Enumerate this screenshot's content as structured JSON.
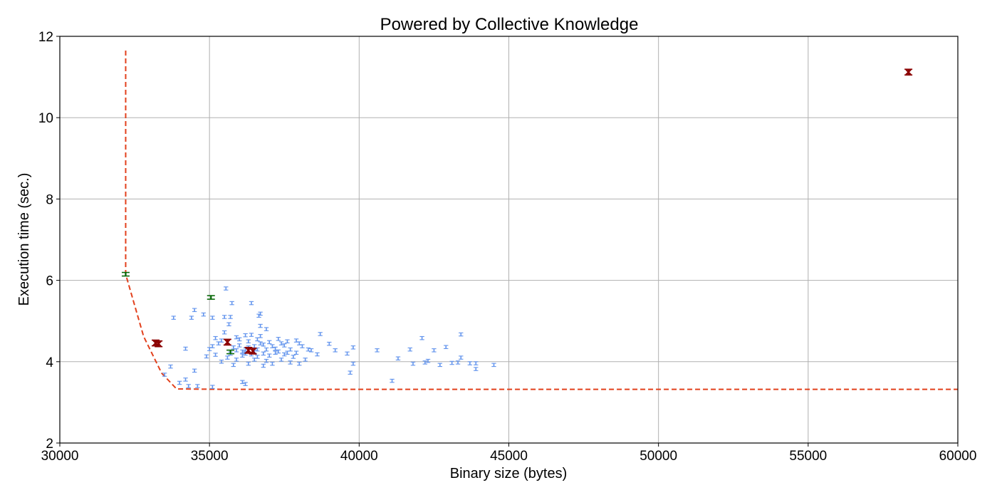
{
  "chart_data": {
    "type": "scatter",
    "title": "Powered by Collective Knowledge",
    "xlabel": "Binary size (bytes)",
    "ylabel": "Execution time (sec.)",
    "xlim": [
      30000,
      60000
    ],
    "ylim": [
      2,
      12
    ],
    "xticks": [
      30000,
      35000,
      40000,
      45000,
      50000,
      55000,
      60000
    ],
    "yticks": [
      2,
      4,
      6,
      8,
      10,
      12
    ],
    "grid": true,
    "colors": {
      "points": "#6495ed",
      "pareto": "#e2401c",
      "best": "#006400",
      "highlight": "#8b0000"
    },
    "frontier": [
      [
        32200,
        11.65
      ],
      [
        32200,
        6.15
      ],
      [
        32800,
        4.62
      ],
      [
        33400,
        3.72
      ],
      [
        33900,
        3.33
      ],
      [
        35500,
        3.32
      ],
      [
        42000,
        3.32
      ],
      [
        60000,
        3.32
      ]
    ],
    "series": [
      {
        "values": [
          [
            35550,
            5.8
          ],
          [
            35750,
            5.44
          ],
          [
            36400,
            5.44
          ],
          [
            36700,
            5.18
          ],
          [
            36650,
            5.13
          ],
          [
            34500,
            5.27
          ],
          [
            34800,
            5.16
          ],
          [
            33800,
            5.08
          ],
          [
            34400,
            5.08
          ],
          [
            35100,
            5.08
          ],
          [
            35500,
            5.1
          ],
          [
            35700,
            5.1
          ],
          [
            35650,
            4.92
          ],
          [
            35500,
            4.72
          ],
          [
            35200,
            4.58
          ],
          [
            35100,
            4.38
          ],
          [
            35000,
            4.31
          ],
          [
            35200,
            4.17
          ],
          [
            34900,
            4.13
          ],
          [
            34200,
            4.32
          ],
          [
            35400,
            4.52
          ],
          [
            35900,
            4.6
          ],
          [
            36200,
            4.65
          ],
          [
            36400,
            4.66
          ],
          [
            36700,
            4.63
          ],
          [
            36700,
            4.88
          ],
          [
            36900,
            4.8
          ],
          [
            37300,
            4.56
          ],
          [
            37600,
            4.5
          ],
          [
            37900,
            4.52
          ],
          [
            38300,
            4.3
          ],
          [
            38700,
            4.68
          ],
          [
            39000,
            4.44
          ],
          [
            39200,
            4.28
          ],
          [
            39600,
            4.2
          ],
          [
            39800,
            4.35
          ],
          [
            39700,
            3.73
          ],
          [
            39800,
            3.95
          ],
          [
            40600,
            4.28
          ],
          [
            41100,
            3.53
          ],
          [
            41300,
            4.08
          ],
          [
            41700,
            4.3
          ],
          [
            41800,
            3.95
          ],
          [
            42100,
            4.58
          ],
          [
            42200,
            3.98
          ],
          [
            42500,
            4.28
          ],
          [
            42300,
            4.02
          ],
          [
            42700,
            3.92
          ],
          [
            42900,
            4.36
          ],
          [
            43100,
            3.97
          ],
          [
            43300,
            3.98
          ],
          [
            43400,
            4.67
          ],
          [
            43400,
            4.1
          ],
          [
            43700,
            3.96
          ],
          [
            43900,
            3.82
          ],
          [
            43900,
            3.96
          ],
          [
            44500,
            3.92
          ],
          [
            33700,
            3.88
          ],
          [
            33500,
            3.68
          ],
          [
            34200,
            3.56
          ],
          [
            34500,
            3.78
          ],
          [
            34000,
            3.48
          ],
          [
            34300,
            3.4
          ],
          [
            34600,
            3.4
          ],
          [
            35100,
            3.38
          ],
          [
            36100,
            3.5
          ],
          [
            36200,
            3.45
          ],
          [
            35600,
            4.1
          ],
          [
            35700,
            4.2
          ],
          [
            35900,
            4.05
          ],
          [
            36100,
            4.15
          ],
          [
            36300,
            3.95
          ],
          [
            36500,
            4.05
          ],
          [
            36800,
            3.9
          ],
          [
            37100,
            3.95
          ],
          [
            37400,
            4.05
          ],
          [
            37700,
            3.98
          ],
          [
            38000,
            3.95
          ],
          [
            38200,
            4.05
          ],
          [
            35800,
            4.35
          ],
          [
            36000,
            4.4
          ],
          [
            36200,
            4.3
          ],
          [
            36500,
            4.25
          ],
          [
            36700,
            4.45
          ],
          [
            36900,
            4.3
          ],
          [
            37100,
            4.38
          ],
          [
            37300,
            4.25
          ],
          [
            37500,
            4.4
          ],
          [
            37700,
            4.3
          ],
          [
            37900,
            4.22
          ],
          [
            38100,
            4.38
          ],
          [
            38400,
            4.28
          ],
          [
            36000,
            4.55
          ],
          [
            36300,
            4.5
          ],
          [
            36600,
            4.55
          ],
          [
            37000,
            4.48
          ],
          [
            37400,
            4.45
          ],
          [
            36400,
            4.18
          ],
          [
            36600,
            4.12
          ],
          [
            36800,
            4.2
          ],
          [
            37000,
            4.15
          ],
          [
            37200,
            4.22
          ],
          [
            36100,
            4.25
          ],
          [
            35900,
            4.28
          ],
          [
            37800,
            4.12
          ],
          [
            38600,
            4.18
          ],
          [
            35400,
            4.0
          ],
          [
            35800,
            3.92
          ],
          [
            36900,
            4.02
          ],
          [
            37500,
            4.18
          ],
          [
            36300,
            4.35
          ],
          [
            36500,
            4.38
          ],
          [
            36800,
            4.42
          ],
          [
            37200,
            4.32
          ],
          [
            37600,
            4.22
          ],
          [
            38000,
            4.45
          ],
          [
            36200,
            4.2
          ],
          [
            36600,
            4.3
          ],
          [
            35300,
            4.45
          ]
        ]
      },
      {
        "values": [
          [
            32200,
            6.15
          ],
          [
            35050,
            5.58
          ],
          [
            35700,
            4.24
          ]
        ]
      },
      {
        "values": [
          [
            33200,
            4.46
          ],
          [
            33300,
            4.44
          ],
          [
            35600,
            4.48
          ],
          [
            36300,
            4.28
          ],
          [
            36450,
            4.26
          ],
          [
            58350,
            11.12
          ]
        ]
      }
    ]
  }
}
